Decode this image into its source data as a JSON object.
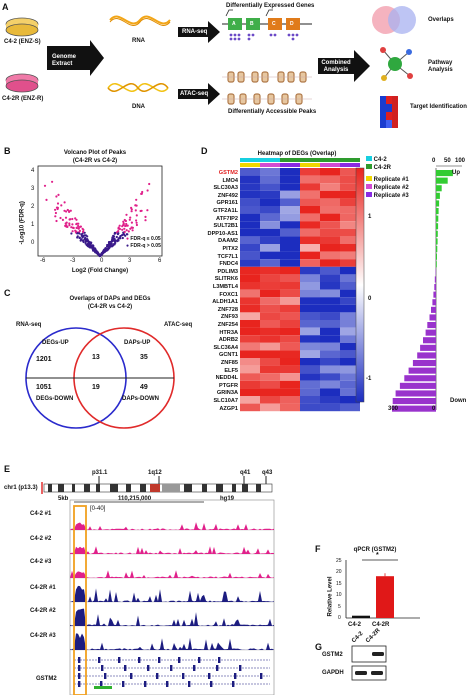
{
  "panelA": {
    "label": "A",
    "dish1": "C4-2 (ENZ-S)",
    "dish2": "C4-2R (ENZ-R)",
    "genome_extract": "Genome Extract",
    "rna": "RNA",
    "dna": "DNA",
    "rna_seq": "RNA-seq",
    "atac_seq": "ATAC-seq",
    "deg_title": "Differentially Expressed Genes",
    "dap_title": "Differentially Accessible Peaks",
    "combined": "Combined Analysis",
    "gene_letters": [
      "A",
      "B",
      "C",
      "D"
    ],
    "overlaps": "Overlaps",
    "pathway": "Pathway Analysis",
    "target": "Target Identification"
  },
  "panelB": {
    "label": "B",
    "title": "Volcano Plot of Peaks",
    "subtitle": "(C4-2R vs C4-2)",
    "ylabel": "-Log10 (FDR-q)",
    "xlabel": "Log2 (Fold Change)",
    "xticks": [
      "-6",
      "-3",
      "0",
      "3",
      "6"
    ],
    "yticks": [
      "0",
      "1",
      "2",
      "3",
      "4"
    ],
    "legend": [
      "FDR-q ≤ 0.05",
      "FDR-q > 0.05"
    ]
  },
  "panelC": {
    "label": "C",
    "title": "Overlaps of DAPs and DEGs",
    "subtitle": "(C4-2R vs C4-2)",
    "left_set": "RNA-seq",
    "right_set": "ATAC-seq",
    "degs_up": "DEGs-UP",
    "degs_down": "DEGs-DOWN",
    "daps_up": "DAPs-UP",
    "daps_down": "DAPs-DOWN",
    "counts": {
      "deg_up_only": "1201",
      "up_up": "13",
      "dap_up_only": "35",
      "deg_down_only": "1051",
      "down_down": "19",
      "dap_down_only": "49"
    }
  },
  "panelD": {
    "label": "D",
    "title": "Heatmap of DEGs (Overlap)",
    "genes": [
      "GSTM2",
      "LMO4",
      "SLC30A3",
      "ZNF492",
      "GPR161",
      "GTF2A1L",
      "ATF7IP2",
      "SULT2B1",
      "DPP10-AS1",
      "DAAM2",
      "PITX2",
      "TCF7L1",
      "FNDC4",
      "PDLIM3",
      "SLITRK6",
      "L3MBTL4",
      "FOXC1",
      "ALDH1A1",
      "ZNF728",
      "ZNF93",
      "ZNF254",
      "HTR3A",
      "ADRB2",
      "SLC36A4",
      "GCNT1",
      "ZNF85",
      "ELF5",
      "NEDD4L",
      "PTGFR",
      "GRIN3A",
      "SLC10A7",
      "AZGP1"
    ],
    "highlight_gene": "GSTM2",
    "legend_groups": [
      "C4-2",
      "C4-2R"
    ],
    "legend_reps": [
      "Replicate #1",
      "Replicate #2",
      "Replicate #3"
    ],
    "scale_labels": [
      "1",
      "0",
      "-1"
    ],
    "bar_ticks_top": [
      "0",
      "50",
      "100"
    ],
    "bar_ticks_bottom": [
      "300",
      "0"
    ],
    "up": "Up",
    "down": "Down",
    "bar_values": [
      65,
      45,
      22,
      15,
      12,
      10,
      9,
      8,
      7,
      6,
      5,
      4,
      3,
      -3,
      -8,
      -12,
      -18,
      -25,
      -35,
      -45,
      -60,
      -72,
      -90,
      -110,
      -130,
      -160,
      -190,
      -220,
      -250,
      -280,
      -300,
      -305
    ],
    "colors": {
      "c42": "#17cfe0",
      "c42r": "#2e9b2e",
      "rep1": "#f0d800",
      "rep2": "#d24bd2",
      "rep3": "#8a2be2",
      "up_bar": "#33cc33",
      "down_bar": "#9933cc"
    }
  },
  "panelE": {
    "label": "E",
    "chrom": "chr1 (p13.3)",
    "bands": [
      "p31.1",
      "1q12",
      "q41",
      "q43"
    ],
    "scale": "5kb",
    "coord": "110,215,000",
    "build": "hg19",
    "range": "[0-40]",
    "tracks": [
      "C4-2 #1",
      "C4-2 #2",
      "C4-2 #3",
      "C4-2R #1",
      "C4-2R #2",
      "C4-2R #3"
    ],
    "gene": "GSTM2"
  },
  "panelF": {
    "label": "F",
    "title": "qPCR (GSTM2)",
    "ylabel": "Relative Level",
    "yticks": [
      "0",
      "5",
      "10",
      "15",
      "20",
      "25"
    ],
    "sig": "*",
    "chart_data": {
      "type": "bar",
      "categories": [
        "C4-2",
        "C4-2R"
      ],
      "values": [
        1,
        18
      ],
      "ylabel": "Relative Level",
      "ylim": [
        0,
        25
      ]
    }
  },
  "panelG": {
    "label": "G",
    "cols": [
      "C4-2",
      "C4-2R"
    ],
    "rows": [
      "GSTM2",
      "GAPDH"
    ]
  }
}
